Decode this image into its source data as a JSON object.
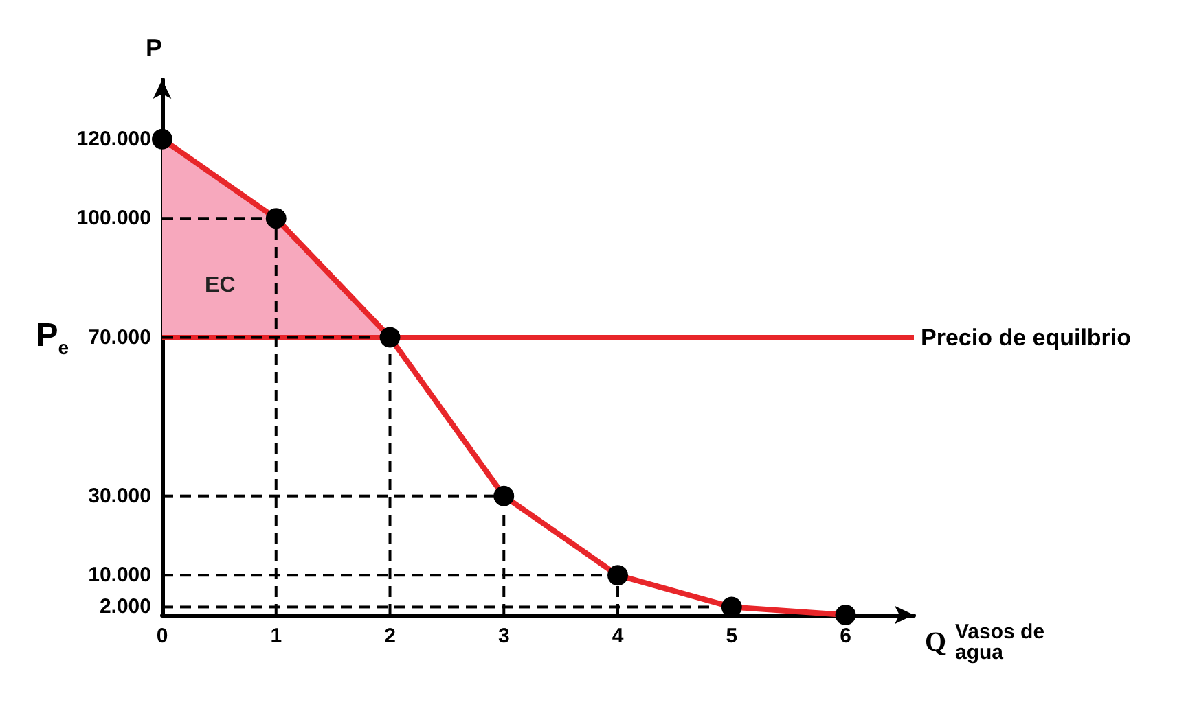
{
  "chart_data": {
    "type": "line",
    "xlabel": "Q",
    "ylabel": "P",
    "x": [
      0,
      1,
      2,
      3,
      4,
      5,
      6
    ],
    "series": [
      {
        "color": "#e8262a",
        "values": [
          120000,
          100000,
          70000,
          30000,
          10000,
          2000,
          0
        ]
      },
      {
        "type": "area",
        "name": "EC",
        "color": "#f7a8bd",
        "x": [
          0,
          1,
          2
        ],
        "values": [
          120000,
          100000,
          70000
        ]
      }
    ],
    "xlim": [
      0,
      6.6
    ],
    "xticks": [
      0,
      1,
      2,
      3,
      4,
      5,
      6
    ],
    "ylim": [
      0,
      135000
    ],
    "yticks": [
      {
        "value": 2000,
        "label": "2.000"
      },
      {
        "value": 10000,
        "label": "10.000"
      },
      {
        "value": 30000,
        "label": "30.000"
      },
      {
        "value": 70000,
        "label": "70.000"
      },
      {
        "value": 100000,
        "label": "100.000"
      },
      {
        "value": 120000,
        "label": "120.000"
      }
    ],
    "ref_lines": [
      {
        "axis": "y",
        "value": 70000,
        "label": "Precio de equilbrio",
        "color": "#e8262a"
      }
    ],
    "annotations": [
      "P$_{e}$",
      "Vasos de agua"
    ],
    "marker": "circle",
    "grid": false
  }
}
